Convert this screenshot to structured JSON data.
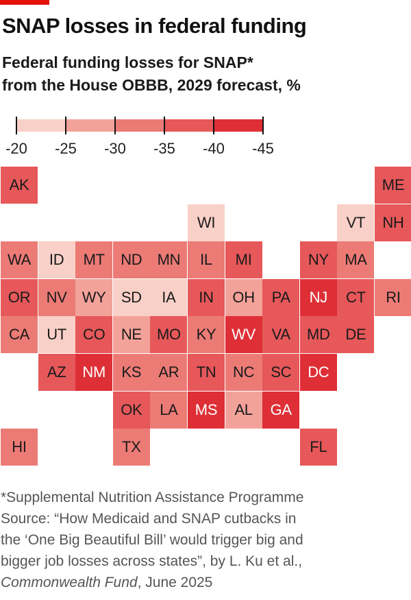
{
  "title": "SNAP losses in federal funding",
  "subtitle_line1": "Federal funding losses for SNAP*",
  "subtitle_line2": "from the House OBBB, 2029 forecast, %",
  "legend": {
    "ticks": [
      "-20",
      "-25",
      "-30",
      "-35",
      "-40",
      "-45"
    ],
    "colors": [
      "#f9d0c7",
      "#f3a29a",
      "#ec7b76",
      "#e6585a",
      "#de2f36"
    ]
  },
  "states": [
    {
      "code": "AK",
      "row": 0,
      "col": 0,
      "bin": 3
    },
    {
      "code": "ME",
      "row": 0,
      "col": 10,
      "bin": 3
    },
    {
      "code": "WI",
      "row": 1,
      "col": 5,
      "bin": 0
    },
    {
      "code": "VT",
      "row": 1,
      "col": 9,
      "bin": 0
    },
    {
      "code": "NH",
      "row": 1,
      "col": 10,
      "bin": 3
    },
    {
      "code": "WA",
      "row": 2,
      "col": 0,
      "bin": 2
    },
    {
      "code": "ID",
      "row": 2,
      "col": 1,
      "bin": 0
    },
    {
      "code": "MT",
      "row": 2,
      "col": 2,
      "bin": 2
    },
    {
      "code": "ND",
      "row": 2,
      "col": 3,
      "bin": 2
    },
    {
      "code": "MN",
      "row": 2,
      "col": 4,
      "bin": 2
    },
    {
      "code": "IL",
      "row": 2,
      "col": 5,
      "bin": 2
    },
    {
      "code": "MI",
      "row": 2,
      "col": 6,
      "bin": 3
    },
    {
      "code": "NY",
      "row": 2,
      "col": 8,
      "bin": 3
    },
    {
      "code": "MA",
      "row": 2,
      "col": 9,
      "bin": 2
    },
    {
      "code": "OR",
      "row": 3,
      "col": 0,
      "bin": 3
    },
    {
      "code": "NV",
      "row": 3,
      "col": 1,
      "bin": 2
    },
    {
      "code": "WY",
      "row": 3,
      "col": 2,
      "bin": 1
    },
    {
      "code": "SD",
      "row": 3,
      "col": 3,
      "bin": 0
    },
    {
      "code": "IA",
      "row": 3,
      "col": 4,
      "bin": 0
    },
    {
      "code": "IN",
      "row": 3,
      "col": 5,
      "bin": 3
    },
    {
      "code": "OH",
      "row": 3,
      "col": 6,
      "bin": 1
    },
    {
      "code": "PA",
      "row": 3,
      "col": 7,
      "bin": 3
    },
    {
      "code": "NJ",
      "row": 3,
      "col": 8,
      "bin": 4
    },
    {
      "code": "CT",
      "row": 3,
      "col": 9,
      "bin": 3
    },
    {
      "code": "RI",
      "row": 3,
      "col": 10,
      "bin": 2
    },
    {
      "code": "CA",
      "row": 4,
      "col": 0,
      "bin": 2
    },
    {
      "code": "UT",
      "row": 4,
      "col": 1,
      "bin": 0
    },
    {
      "code": "CO",
      "row": 4,
      "col": 2,
      "bin": 3
    },
    {
      "code": "NE",
      "row": 4,
      "col": 3,
      "bin": 1
    },
    {
      "code": "MO",
      "row": 4,
      "col": 4,
      "bin": 3
    },
    {
      "code": "KY",
      "row": 4,
      "col": 5,
      "bin": 2
    },
    {
      "code": "WV",
      "row": 4,
      "col": 6,
      "bin": 4
    },
    {
      "code": "VA",
      "row": 4,
      "col": 7,
      "bin": 3
    },
    {
      "code": "MD",
      "row": 4,
      "col": 8,
      "bin": 3
    },
    {
      "code": "DE",
      "row": 4,
      "col": 9,
      "bin": 3
    },
    {
      "code": "AZ",
      "row": 5,
      "col": 1,
      "bin": 3
    },
    {
      "code": "NM",
      "row": 5,
      "col": 2,
      "bin": 4
    },
    {
      "code": "KS",
      "row": 5,
      "col": 3,
      "bin": 2
    },
    {
      "code": "AR",
      "row": 5,
      "col": 4,
      "bin": 2
    },
    {
      "code": "TN",
      "row": 5,
      "col": 5,
      "bin": 3
    },
    {
      "code": "NC",
      "row": 5,
      "col": 6,
      "bin": 2
    },
    {
      "code": "SC",
      "row": 5,
      "col": 7,
      "bin": 3
    },
    {
      "code": "DC",
      "row": 5,
      "col": 8,
      "bin": 4
    },
    {
      "code": "OK",
      "row": 6,
      "col": 3,
      "bin": 3
    },
    {
      "code": "LA",
      "row": 6,
      "col": 4,
      "bin": 2
    },
    {
      "code": "MS",
      "row": 6,
      "col": 5,
      "bin": 4
    },
    {
      "code": "AL",
      "row": 6,
      "col": 6,
      "bin": 1
    },
    {
      "code": "GA",
      "row": 6,
      "col": 7,
      "bin": 4
    },
    {
      "code": "HI",
      "row": 7,
      "col": 0,
      "bin": 2
    },
    {
      "code": "TX",
      "row": 7,
      "col": 3,
      "bin": 2
    },
    {
      "code": "FL",
      "row": 7,
      "col": 8,
      "bin": 3
    }
  ],
  "footer": {
    "line1": "*Supplemental Nutrition Assistance Programme",
    "line2": "Source: “How Medicaid and SNAP cutbacks in",
    "line3": "the ‘One Big Beautiful Bill’ would trigger big and",
    "line4": "bigger job losses across states”, by L. Ku et al.,",
    "line5_italic": "Commonwealth Fund",
    "line5_rest": ", June 2025"
  }
}
